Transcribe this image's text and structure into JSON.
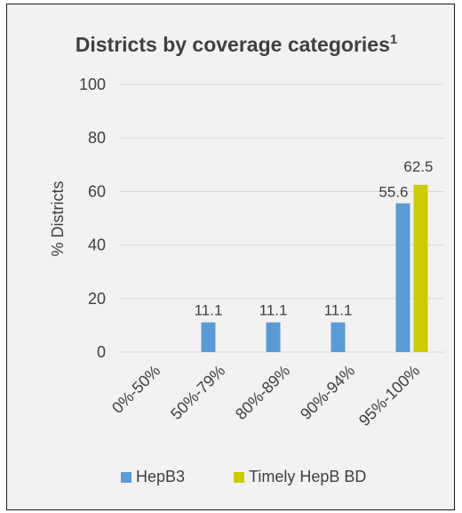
{
  "chart_data": {
    "type": "bar",
    "title": "Districts by coverage categories",
    "title_superscript": "1",
    "ylabel": "% Districts",
    "ylim": [
      0,
      100
    ],
    "yticks": [
      0,
      20,
      40,
      60,
      80,
      100
    ],
    "grid": true,
    "legend_position": "bottom",
    "categories": [
      "0%-50%",
      "50%-79%",
      "80%-89%",
      "90%-94%",
      "95%-100%"
    ],
    "series": [
      {
        "name": "HepB3",
        "color": "#5b9bd5",
        "values": [
          0,
          11.1,
          11.1,
          11.1,
          55.6
        ],
        "labels": [
          "",
          "11.1",
          "11.1",
          "11.1",
          "55.6"
        ]
      },
      {
        "name": "Timely HepB BD",
        "color": "#cccc00",
        "values": [
          0,
          0,
          0,
          0,
          62.5
        ],
        "labels": [
          "",
          "",
          "",
          "",
          "62.5"
        ]
      }
    ]
  }
}
